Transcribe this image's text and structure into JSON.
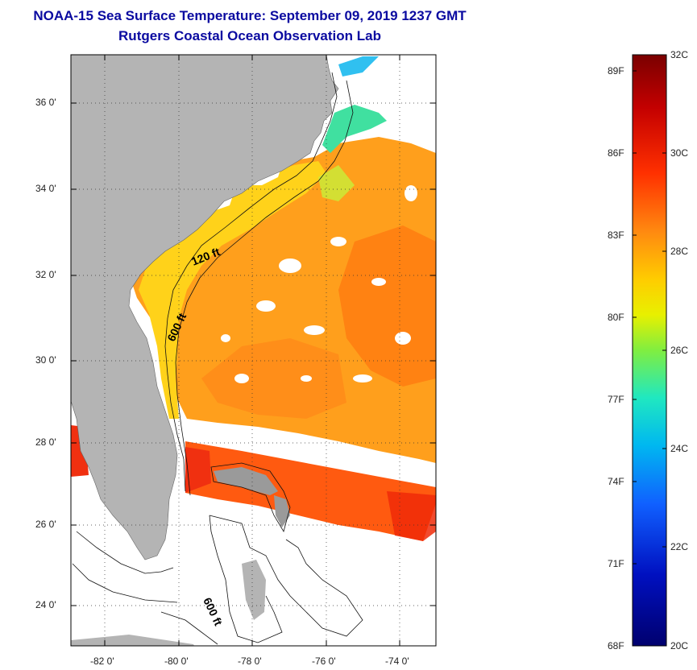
{
  "title": {
    "line1": "NOAA-15 Sea Surface Temperature:  September 09, 2019 1237 GMT",
    "line2": "Rutgers Coastal Ocean Observation Lab"
  },
  "map": {
    "lat_labels": [
      "36 0'",
      "34 0'",
      "32 0'",
      "30 0'",
      "28 0'",
      "26 0'",
      "24 0'"
    ],
    "lon_labels": [
      "-82 0'",
      "-80 0'",
      "-78 0'",
      "-76 0'",
      "-74 0'"
    ],
    "contours": {
      "c120": "120 ft",
      "c600": "600 ft",
      "c600b": "600 ft"
    }
  },
  "colorbar": {
    "f_labels": [
      "89F",
      "86F",
      "83F",
      "80F",
      "77F",
      "74F",
      "71F",
      "68F"
    ],
    "c_labels": [
      "32C",
      "30C",
      "28C",
      "26C",
      "24C",
      "22C",
      "20C"
    ],
    "colors": [
      "#7a0000",
      "#c40000",
      "#ff3000",
      "#ff8a10",
      "#ffcc00",
      "#e8f000",
      "#80ee40",
      "#20e8c0",
      "#00b8f0",
      "#1060ff",
      "#0010c0",
      "#00006e"
    ]
  }
}
